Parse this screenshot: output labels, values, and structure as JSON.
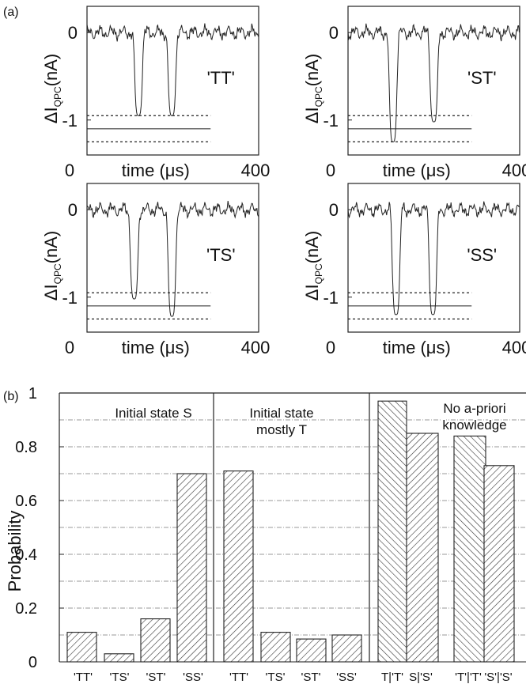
{
  "panel_labels": {
    "a": "(a)",
    "b": "(b)"
  },
  "chart_data": [
    {
      "type": "line",
      "label": "'TT'",
      "ylabel_main": "ΔI",
      "ylabel_sub": "QPC",
      "ylabel_unit": "(nA)",
      "xlabel": "time (μs)",
      "x_ticks": [
        "0",
        "400"
      ],
      "y_ticks": [
        "0",
        "-1"
      ],
      "xlim": [
        0,
        400
      ],
      "ylim": [
        -1.4,
        0.3
      ],
      "thresholds": {
        "dotted": [
          -0.95,
          -1.25
        ],
        "solid": -1.1
      },
      "dips": [
        {
          "t": 120,
          "depth": -0.95
        },
        {
          "t": 198,
          "depth": -0.95
        }
      ]
    },
    {
      "type": "line",
      "label": "'ST'",
      "ylabel_main": "ΔI",
      "ylabel_sub": "QPC",
      "ylabel_unit": "(nA)",
      "xlabel": "time (μs)",
      "x_ticks": [
        "0",
        "400"
      ],
      "y_ticks": [
        "0",
        "-1"
      ],
      "xlim": [
        0,
        400
      ],
      "ylim": [
        -1.4,
        0.3
      ],
      "thresholds": {
        "dotted": [
          -0.95,
          -1.25
        ],
        "solid": -1.1
      },
      "dips": [
        {
          "t": 105,
          "depth": -1.25
        },
        {
          "t": 200,
          "depth": -1.02
        }
      ]
    },
    {
      "type": "line",
      "label": "'TS'",
      "ylabel_main": "ΔI",
      "ylabel_sub": "QPC",
      "ylabel_unit": "(nA)",
      "xlabel": "time (μs)",
      "x_ticks": [
        "0",
        "400"
      ],
      "y_ticks": [
        "0",
        "-1"
      ],
      "xlim": [
        0,
        400
      ],
      "ylim": [
        -1.4,
        0.3
      ],
      "thresholds": {
        "dotted": [
          -0.95,
          -1.25
        ],
        "solid": -1.1
      },
      "dips": [
        {
          "t": 110,
          "depth": -1.02
        },
        {
          "t": 198,
          "depth": -1.22
        }
      ]
    },
    {
      "type": "line",
      "label": "'SS'",
      "ylabel_main": "ΔI",
      "ylabel_sub": "QPC",
      "ylabel_unit": "(nA)",
      "xlabel": "time (μs)",
      "x_ticks": [
        "0",
        "400"
      ],
      "y_ticks": [
        "0",
        "-1"
      ],
      "xlim": [
        0,
        400
      ],
      "ylim": [
        -1.4,
        0.3
      ],
      "thresholds": {
        "dotted": [
          -0.95,
          -1.25
        ],
        "solid": -1.1
      },
      "dips": [
        {
          "t": 112,
          "depth": -1.2
        },
        {
          "t": 198,
          "depth": -1.2
        }
      ]
    },
    {
      "type": "bar",
      "ylabel": "Probability",
      "ylim": [
        0,
        1
      ],
      "y_ticks": [
        "0",
        "0.2",
        "0.4",
        "0.6",
        "0.8",
        "1"
      ],
      "y_tick_values": [
        0,
        0.2,
        0.4,
        0.6,
        0.8,
        1.0
      ],
      "gridlines": [
        0.1,
        0.2,
        0.3,
        0.4,
        0.5,
        0.6,
        0.7,
        0.8,
        0.9
      ],
      "groups": [
        {
          "title": [
            "Initial state S"
          ],
          "categories": [
            "'TT'",
            "'TS'",
            "'ST'",
            "'SS'"
          ],
          "values": [
            0.11,
            0.03,
            0.16,
            0.7
          ]
        },
        {
          "title": [
            "Initial state",
            "mostly T"
          ],
          "categories": [
            "'TT'",
            "'TS'",
            "'ST'",
            "'SS'"
          ],
          "values": [
            0.71,
            0.11,
            0.085,
            0.1
          ]
        },
        {
          "title": [
            "No a-priori",
            "knowledge"
          ],
          "categories": [
            "T|'T'",
            "S|'S'",
            "'T'|'T'",
            "'S'|'S'"
          ],
          "values": [
            0.97,
            0.85,
            0.84,
            0.73
          ]
        }
      ]
    }
  ]
}
